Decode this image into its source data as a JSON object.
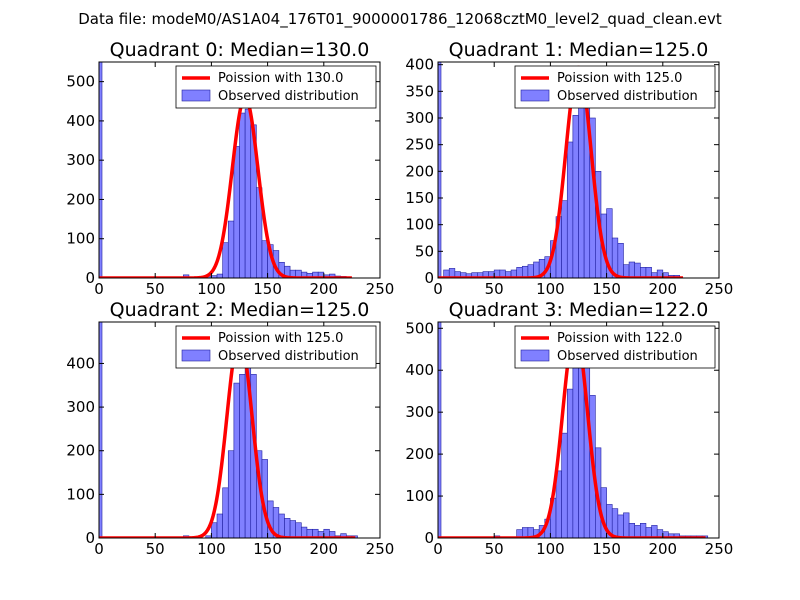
{
  "figure_title": "Data file: modeM0/AS1A04_176T01_9000001786_12068cztM0_level2_quad_clean.evt",
  "colors": {
    "bar_fill": "#8080ff",
    "bar_edge": "#2020a0",
    "model_line": "#ff0000",
    "axis": "#000000",
    "background": "#ffffff"
  },
  "chart_data": [
    {
      "type": "bar",
      "title": "Quadrant 0: Median=130.0",
      "xlim": [
        0,
        250
      ],
      "ylim": [
        0,
        550
      ],
      "xticks": [
        0,
        50,
        100,
        150,
        200,
        250
      ],
      "yticks": [
        0,
        100,
        200,
        300,
        400,
        500
      ],
      "bin_width": 5,
      "legend": [
        "Poission with 130.0",
        "Observed distribution"
      ],
      "legend_position": "upper right",
      "zero_bin_value": 550,
      "bins": [
        [
          75,
          8
        ],
        [
          95,
          5
        ],
        [
          100,
          6
        ],
        [
          105,
          10
        ],
        [
          110,
          90
        ],
        [
          115,
          145
        ],
        [
          120,
          335
        ],
        [
          125,
          420
        ],
        [
          130,
          430
        ],
        [
          135,
          390
        ],
        [
          140,
          230
        ],
        [
          145,
          95
        ],
        [
          150,
          85
        ],
        [
          155,
          70
        ],
        [
          160,
          40
        ],
        [
          165,
          30
        ],
        [
          170,
          20
        ],
        [
          175,
          20
        ],
        [
          180,
          15
        ],
        [
          185,
          12
        ],
        [
          190,
          15
        ],
        [
          195,
          15
        ],
        [
          200,
          8
        ],
        [
          205,
          10
        ],
        [
          210,
          5
        ],
        [
          215,
          4
        ]
      ],
      "poisson_mean": 130,
      "poisson_peak": 460,
      "poisson_range": [
        0,
        225
      ]
    },
    {
      "type": "bar",
      "title": "Quadrant 1: Median=125.0",
      "xlim": [
        0,
        250
      ],
      "ylim": [
        0,
        405
      ],
      "xticks": [
        0,
        50,
        100,
        150,
        200,
        250
      ],
      "yticks": [
        0,
        50,
        100,
        150,
        200,
        250,
        300,
        350,
        400
      ],
      "bin_width": 5,
      "legend": [
        "Poission with 125.0",
        "Observed distribution"
      ],
      "legend_position": "upper right",
      "zero_bin_value": 405,
      "bins": [
        [
          5,
          15
        ],
        [
          10,
          18
        ],
        [
          15,
          12
        ],
        [
          20,
          10
        ],
        [
          25,
          8
        ],
        [
          30,
          10
        ],
        [
          35,
          10
        ],
        [
          40,
          12
        ],
        [
          45,
          12
        ],
        [
          50,
          15
        ],
        [
          55,
          15
        ],
        [
          60,
          12
        ],
        [
          65,
          15
        ],
        [
          70,
          20
        ],
        [
          75,
          22
        ],
        [
          80,
          25
        ],
        [
          85,
          30
        ],
        [
          90,
          35
        ],
        [
          95,
          40
        ],
        [
          100,
          70
        ],
        [
          105,
          115
        ],
        [
          110,
          145
        ],
        [
          115,
          255
        ],
        [
          120,
          305
        ],
        [
          125,
          330
        ],
        [
          130,
          330
        ],
        [
          135,
          300
        ],
        [
          140,
          200
        ],
        [
          145,
          120
        ],
        [
          150,
          130
        ],
        [
          155,
          75
        ],
        [
          160,
          65
        ],
        [
          165,
          25
        ],
        [
          170,
          30
        ],
        [
          175,
          28
        ],
        [
          180,
          20
        ],
        [
          185,
          20
        ],
        [
          190,
          10
        ],
        [
          195,
          15
        ],
        [
          200,
          10
        ],
        [
          205,
          5
        ],
        [
          210,
          5
        ]
      ],
      "poisson_mean": 125,
      "poisson_peak": 395,
      "poisson_range": [
        0,
        218
      ]
    },
    {
      "type": "bar",
      "title": "Quadrant 2: Median=125.0",
      "xlim": [
        0,
        250
      ],
      "ylim": [
        0,
        495
      ],
      "xticks": [
        0,
        50,
        100,
        150,
        200,
        250
      ],
      "yticks": [
        0,
        100,
        200,
        300,
        400
      ],
      "bin_width": 5,
      "legend": [
        "Poission with 125.0",
        "Observed distribution"
      ],
      "legend_position": "upper right",
      "zero_bin_value": 495,
      "bins": [
        [
          75,
          5
        ],
        [
          95,
          5
        ],
        [
          100,
          35
        ],
        [
          105,
          55
        ],
        [
          110,
          115
        ],
        [
          115,
          200
        ],
        [
          120,
          355
        ],
        [
          125,
          375
        ],
        [
          130,
          420
        ],
        [
          135,
          375
        ],
        [
          140,
          200
        ],
        [
          145,
          180
        ],
        [
          150,
          85
        ],
        [
          155,
          70
        ],
        [
          160,
          55
        ],
        [
          165,
          45
        ],
        [
          170,
          40
        ],
        [
          175,
          35
        ],
        [
          180,
          25
        ],
        [
          185,
          20
        ],
        [
          190,
          20
        ],
        [
          195,
          15
        ],
        [
          200,
          20
        ],
        [
          205,
          15
        ],
        [
          210,
          5
        ],
        [
          215,
          10
        ],
        [
          220,
          5
        ],
        [
          225,
          5
        ]
      ],
      "poisson_mean": 125,
      "poisson_peak": 460,
      "poisson_range": [
        0,
        228
      ]
    },
    {
      "type": "bar",
      "title": "Quadrant 3: Median=122.0",
      "xlim": [
        0,
        250
      ],
      "ylim": [
        0,
        515
      ],
      "xticks": [
        0,
        50,
        100,
        150,
        200,
        250
      ],
      "yticks": [
        0,
        100,
        200,
        300,
        400,
        500
      ],
      "bin_width": 5,
      "legend": [
        "Poission with 122.0",
        "Observed distribution"
      ],
      "legend_position": "upper right",
      "zero_bin_value": 515,
      "bins": [
        [
          50,
          5
        ],
        [
          70,
          20
        ],
        [
          75,
          25
        ],
        [
          80,
          25
        ],
        [
          85,
          20
        ],
        [
          90,
          30
        ],
        [
          95,
          45
        ],
        [
          100,
          95
        ],
        [
          105,
          160
        ],
        [
          110,
          250
        ],
        [
          115,
          355
        ],
        [
          120,
          450
        ],
        [
          125,
          415
        ],
        [
          130,
          440
        ],
        [
          135,
          340
        ],
        [
          140,
          215
        ],
        [
          145,
          120
        ],
        [
          150,
          80
        ],
        [
          155,
          70
        ],
        [
          160,
          55
        ],
        [
          165,
          60
        ],
        [
          170,
          35
        ],
        [
          175,
          30
        ],
        [
          180,
          35
        ],
        [
          185,
          25
        ],
        [
          190,
          30
        ],
        [
          195,
          20
        ],
        [
          200,
          15
        ],
        [
          205,
          10
        ],
        [
          210,
          10
        ],
        [
          215,
          5
        ],
        [
          220,
          5
        ],
        [
          225,
          5
        ],
        [
          230,
          5
        ],
        [
          235,
          5
        ]
      ],
      "poisson_mean": 122,
      "poisson_peak": 495,
      "poisson_range": [
        0,
        238
      ]
    }
  ]
}
